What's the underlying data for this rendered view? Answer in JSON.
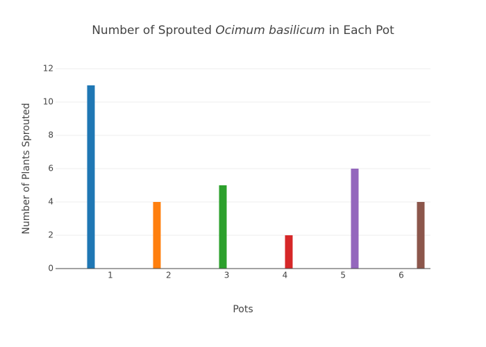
{
  "chart_data": {
    "type": "bar",
    "title": [
      "Number of Sprouted ",
      "Ocimum basilicum",
      " in Each Pot"
    ],
    "title_italic": [
      false,
      true,
      false
    ],
    "x_label": "Pots",
    "y_label": "Number of Plants Sprouted",
    "categories": [
      "1",
      "2",
      "3",
      "4",
      "5",
      "6"
    ],
    "values": [
      11,
      4,
      5,
      2,
      6,
      4
    ],
    "colors": [
      "#1f77b4",
      "#ff7f0e",
      "#2ca02c",
      "#d62728",
      "#9467bd",
      "#8c564b"
    ],
    "ylim": [
      0,
      12
    ],
    "yticks": [
      0,
      2,
      4,
      6,
      8,
      10,
      12
    ],
    "grid": true
  }
}
